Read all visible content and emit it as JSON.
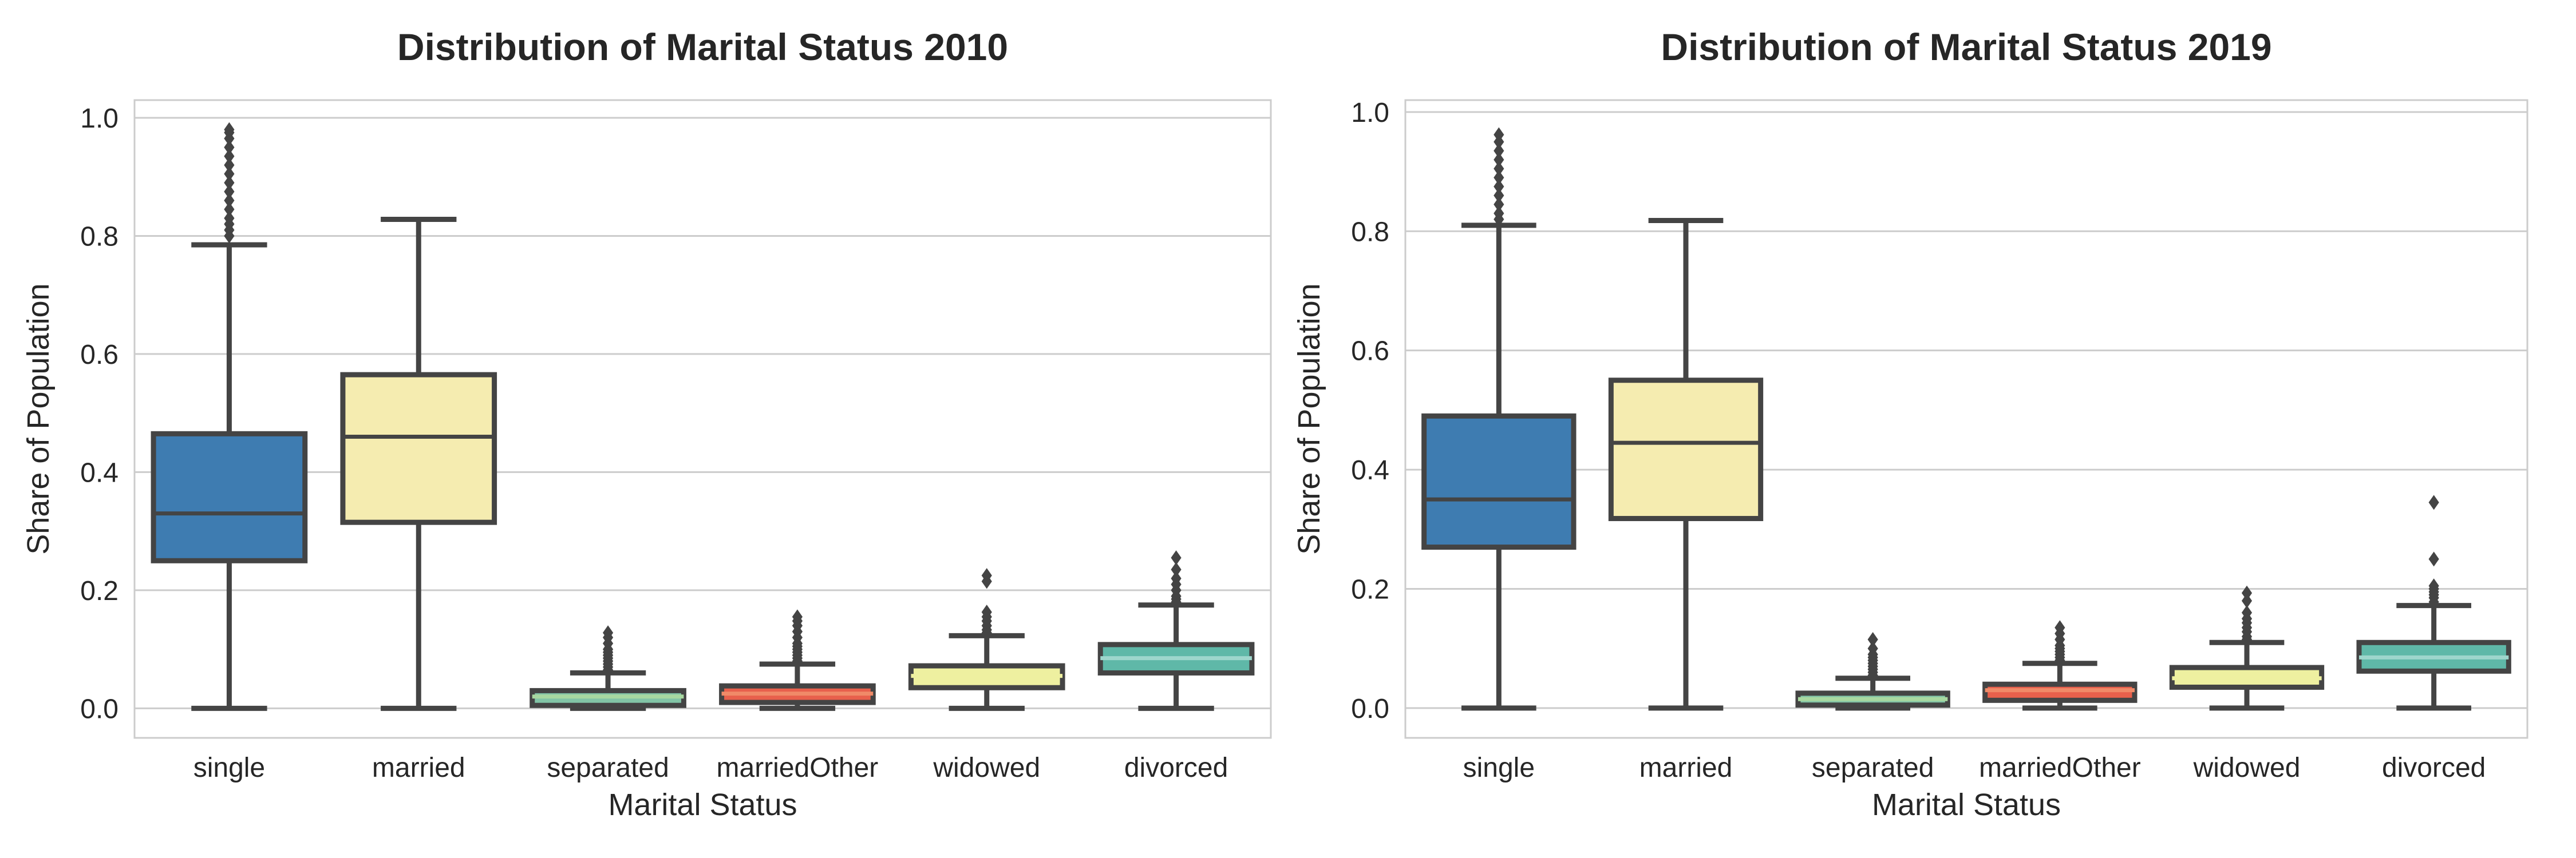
{
  "chart_data": [
    {
      "type": "box",
      "title": "Distribution of Marital Status 2010",
      "xlabel": "Marital Status",
      "ylabel": "Share of Population",
      "ylim": [
        -0.05,
        1.03
      ],
      "yticks": [
        "0.0",
        "0.2",
        "0.4",
        "0.6",
        "0.8",
        "1.0"
      ],
      "grid": true,
      "categories": [
        "single",
        "married",
        "separated",
        "marriedOther",
        "widowed",
        "divorced"
      ],
      "boxes": [
        {
          "category": "single",
          "color": "#3e7cb1",
          "median_color": "#444444",
          "whisker_low": 0.0,
          "q1": 0.25,
          "median": 0.33,
          "q3": 0.465,
          "whisker_high": 0.785,
          "outliers": [
            0.8,
            0.81,
            0.82,
            0.83,
            0.845,
            0.86,
            0.875,
            0.89,
            0.905,
            0.92,
            0.935,
            0.95,
            0.965,
            0.975,
            0.98
          ]
        },
        {
          "category": "married",
          "color": "#f5ecb0",
          "median_color": "#444444",
          "whisker_low": 0.0,
          "q1": 0.315,
          "median": 0.46,
          "q3": 0.565,
          "whisker_high": 0.828,
          "outliers": []
        },
        {
          "category": "separated",
          "color": "#82c4a6",
          "median_color": "#a8d8a0",
          "whisker_low": 0.0,
          "q1": 0.005,
          "median": 0.02,
          "q3": 0.03,
          "whisker_high": 0.06,
          "outliers": [
            0.065,
            0.07,
            0.075,
            0.08,
            0.085,
            0.09,
            0.095,
            0.1,
            0.11,
            0.12,
            0.128
          ]
        },
        {
          "category": "marriedOther",
          "color": "#e8604c",
          "median_color": "#f08a68",
          "whisker_low": 0.0,
          "q1": 0.01,
          "median": 0.025,
          "q3": 0.038,
          "whisker_high": 0.075,
          "outliers": [
            0.08,
            0.085,
            0.09,
            0.095,
            0.1,
            0.105,
            0.11,
            0.12,
            0.13,
            0.14,
            0.148,
            0.155
          ]
        },
        {
          "category": "widowed",
          "color": "#eef0a0",
          "median_color": "#eef0a0",
          "whisker_low": 0.0,
          "q1": 0.035,
          "median": 0.055,
          "q3": 0.072,
          "whisker_high": 0.123,
          "outliers": [
            0.128,
            0.133,
            0.14,
            0.148,
            0.155,
            0.163,
            0.215,
            0.225
          ]
        },
        {
          "category": "divorced",
          "color": "#5fb8a8",
          "median_color": "#9ed6cc",
          "whisker_low": 0.0,
          "q1": 0.06,
          "median": 0.085,
          "q3": 0.108,
          "whisker_high": 0.175,
          "outliers": [
            0.18,
            0.185,
            0.19,
            0.2,
            0.21,
            0.22,
            0.235,
            0.255
          ]
        }
      ]
    },
    {
      "type": "box",
      "title": "Distribution of Marital Status 2019",
      "xlabel": "Marital Status",
      "ylabel": "Share of Population",
      "ylim": [
        -0.05,
        1.02
      ],
      "yticks": [
        "0.0",
        "0.2",
        "0.4",
        "0.6",
        "0.8",
        "1.0"
      ],
      "grid": true,
      "categories": [
        "single",
        "married",
        "separated",
        "marriedOther",
        "widowed",
        "divorced"
      ],
      "boxes": [
        {
          "category": "single",
          "color": "#3e7cb1",
          "median_color": "#444444",
          "whisker_low": 0.0,
          "q1": 0.27,
          "median": 0.35,
          "q3": 0.49,
          "whisker_high": 0.81,
          "outliers": [
            0.82,
            0.83,
            0.845,
            0.86,
            0.875,
            0.89,
            0.905,
            0.92,
            0.935,
            0.95,
            0.962
          ]
        },
        {
          "category": "married",
          "color": "#f5ecb0",
          "median_color": "#444444",
          "whisker_low": 0.0,
          "q1": 0.318,
          "median": 0.445,
          "q3": 0.55,
          "whisker_high": 0.818,
          "outliers": []
        },
        {
          "category": "separated",
          "color": "#82c4a6",
          "median_color": "#a8d8a0",
          "whisker_low": 0.0,
          "q1": 0.005,
          "median": 0.015,
          "q3": 0.025,
          "whisker_high": 0.05,
          "outliers": [
            0.055,
            0.06,
            0.065,
            0.07,
            0.075,
            0.08,
            0.085,
            0.09,
            0.1,
            0.115
          ]
        },
        {
          "category": "marriedOther",
          "color": "#e8604c",
          "median_color": "#f08a68",
          "whisker_low": 0.0,
          "q1": 0.013,
          "median": 0.03,
          "q3": 0.04,
          "whisker_high": 0.075,
          "outliers": [
            0.08,
            0.085,
            0.09,
            0.095,
            0.1,
            0.105,
            0.115,
            0.125,
            0.135
          ]
        },
        {
          "category": "widowed",
          "color": "#eef0a0",
          "median_color": "#eef0a0",
          "whisker_low": 0.0,
          "q1": 0.035,
          "median": 0.05,
          "q3": 0.068,
          "whisker_high": 0.11,
          "outliers": [
            0.115,
            0.12,
            0.128,
            0.135,
            0.143,
            0.15,
            0.16,
            0.18,
            0.193
          ]
        },
        {
          "category": "divorced",
          "color": "#5fb8a8",
          "median_color": "#9ed6cc",
          "whisker_low": 0.0,
          "q1": 0.062,
          "median": 0.085,
          "q3": 0.11,
          "whisker_high": 0.172,
          "outliers": [
            0.178,
            0.185,
            0.19,
            0.195,
            0.2,
            0.205,
            0.25,
            0.345
          ]
        }
      ]
    }
  ]
}
